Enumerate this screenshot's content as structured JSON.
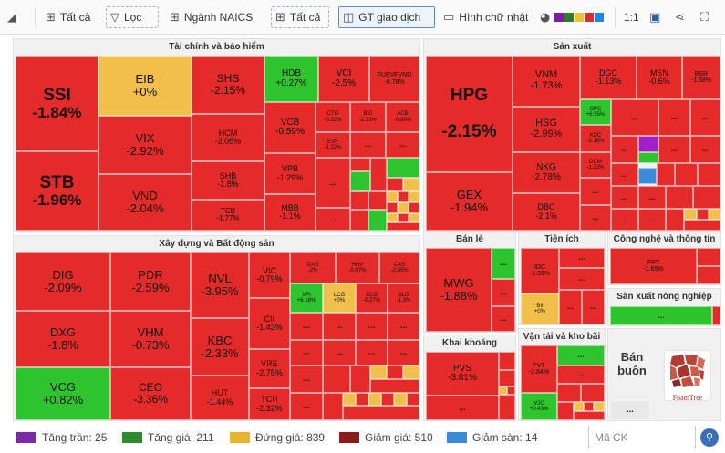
{
  "toolbar": {
    "all_1": "Tất cả",
    "filter": "Lọc",
    "industry": "Ngành NAICS",
    "all_2": "Tất cả",
    "value_mode": "GT giao dịch",
    "shape": "Hình chữ nhật",
    "ratio": "1:1",
    "palette_colors": [
      "#7b1fa2",
      "#2e7d32",
      "#f0c030",
      "#d32f2f",
      "#1e88e5"
    ]
  },
  "sectors": {
    "finance": "Tài chính và bảo hiểm",
    "manufacturing": "Sản xuất",
    "construction": "Xây dựng và Bất động sản",
    "retail": "Bán lẻ",
    "utilities": "Tiện ích",
    "tech": "Công nghệ và thông tin",
    "agri": "Sản xuất nông nghiệp",
    "mining": "Khai khoáng",
    "transport": "Vận tải và kho bãi",
    "wholesale": "Bán buôn"
  },
  "tiles": {
    "ssi": {
      "sym": "SSI",
      "chg": "-1.84%"
    },
    "stb": {
      "sym": "STB",
      "chg": "-1.96%"
    },
    "eib": {
      "sym": "EIB",
      "chg": "+0%"
    },
    "vix": {
      "sym": "VIX",
      "chg": "-2.92%"
    },
    "vnd": {
      "sym": "VND",
      "chg": "-2.04%"
    },
    "shs": {
      "sym": "SHS",
      "chg": "-2.15%"
    },
    "hdb": {
      "sym": "HDB",
      "chg": "+0.27%"
    },
    "vci": {
      "sym": "VCI",
      "chg": "-2.5%"
    },
    "fuevfvnd": {
      "sym": "FUEVFVND",
      "chg": "-0.78%"
    },
    "hcm": {
      "sym": "HCM",
      "chg": "-2.05%"
    },
    "vcb": {
      "sym": "VCB",
      "chg": "-0.59%"
    },
    "ctg": {
      "sym": "CTG",
      "chg": "-0.32%"
    },
    "bid": {
      "sym": "BID",
      "chg": "-2.23%"
    },
    "acb": {
      "sym": "ACB",
      "chg": "-0.99%"
    },
    "shb": {
      "sym": "SHB",
      "chg": "-1.8%"
    },
    "vpb": {
      "sym": "VPB",
      "chg": "-1.29%"
    },
    "evf": {
      "sym": "EVF",
      "chg": "-1.22%"
    },
    "tcb": {
      "sym": "TCB",
      "chg": "-1.77%"
    },
    "mbb": {
      "sym": "MBB",
      "chg": "-1.1%"
    },
    "hpg": {
      "sym": "HPG",
      "chg": "-2.15%"
    },
    "gex": {
      "sym": "GEX",
      "chg": "-1.94%"
    },
    "vnm": {
      "sym": "VNM",
      "chg": "-1.73%"
    },
    "dgc": {
      "sym": "DGC",
      "chg": "-1.13%"
    },
    "msn": {
      "sym": "MSN",
      "chg": "-0.6%"
    },
    "bsr": {
      "sym": "BSR",
      "chg": "-1.58%"
    },
    "hsg": {
      "sym": "HSG",
      "chg": "-2.99%"
    },
    "opc": {
      "sym": "OPC",
      "chg": "+6.55%"
    },
    "kdc": {
      "sym": "KDC",
      "chg": "-3.16%"
    },
    "nkg": {
      "sym": "NKG",
      "chg": "-2.78%"
    },
    "dcm": {
      "sym": "DCM",
      "chg": "-1.22%"
    },
    "dbc": {
      "sym": "DBC",
      "chg": "-2.1%"
    },
    "dig": {
      "sym": "DIG",
      "chg": "-2.09%"
    },
    "dxg": {
      "sym": "DXG",
      "chg": "-1.8%"
    },
    "vcg": {
      "sym": "VCG",
      "chg": "+0.82%"
    },
    "pdr": {
      "sym": "PDR",
      "chg": "-2.59%"
    },
    "vhm": {
      "sym": "VHM",
      "chg": "-0.73%"
    },
    "ceo": {
      "sym": "CEO",
      "chg": "-3.36%"
    },
    "nvl": {
      "sym": "NVL",
      "chg": "-3.95%"
    },
    "kbc": {
      "sym": "KBC",
      "chg": "-2.33%"
    },
    "hut": {
      "sym": "HUT",
      "chg": "-1.44%"
    },
    "vic": {
      "sym": "VIC",
      "chg": "-0.79%"
    },
    "cii": {
      "sym": "CII",
      "chg": "-1.43%"
    },
    "vre": {
      "sym": "VRE",
      "chg": "-2.75%"
    },
    "tch": {
      "sym": "TCH",
      "chg": "-2.32%"
    },
    "dxs": {
      "sym": "DXS",
      "chg": "-2%"
    },
    "hhv": {
      "sym": "HHV",
      "chg": "-0.97%"
    },
    "c4g": {
      "sym": "C4G",
      "chg": "-2.85%"
    },
    "vpi": {
      "sym": "VPI",
      "chg": "+6.18%"
    },
    "lcg": {
      "sym": "LCG",
      "chg": "+0%"
    },
    "scg": {
      "sym": "SCG",
      "chg": "-0.27%"
    },
    "nlg": {
      "sym": "NLG",
      "chg": "-1.3%"
    },
    "mwg": {
      "sym": "MWG",
      "chg": "-1.88%"
    },
    "idc": {
      "sym": "IDC",
      "chg": "-1.36%"
    },
    "bii": {
      "sym": "BII",
      "chg": "+0%"
    },
    "fpt": {
      "sym": "FPT",
      "chg": "-1.65%"
    },
    "pvs": {
      "sym": "PVS",
      "chg": "-3.81%"
    },
    "pvt": {
      "sym": "PVT",
      "chg": "-2.84%"
    },
    "vjc": {
      "sym": "VJC",
      "chg": "+0.43%"
    }
  },
  "ellipsis": "...",
  "wholesale_logo": "FoamTree",
  "legend": [
    {
      "label": "Tăng trần: 25",
      "color": "#7b2aa8"
    },
    {
      "label": "Tăng giá: 211",
      "color": "#2e8b2e"
    },
    {
      "label": "Đứng giá: 839",
      "color": "#e8b52c"
    },
    {
      "label": "Giảm giá: 510",
      "color": "#8b1a1a"
    },
    {
      "label": "Giảm sàn: 14",
      "color": "#3a8ad8"
    }
  ],
  "search": {
    "placeholder": "Mã CK"
  }
}
